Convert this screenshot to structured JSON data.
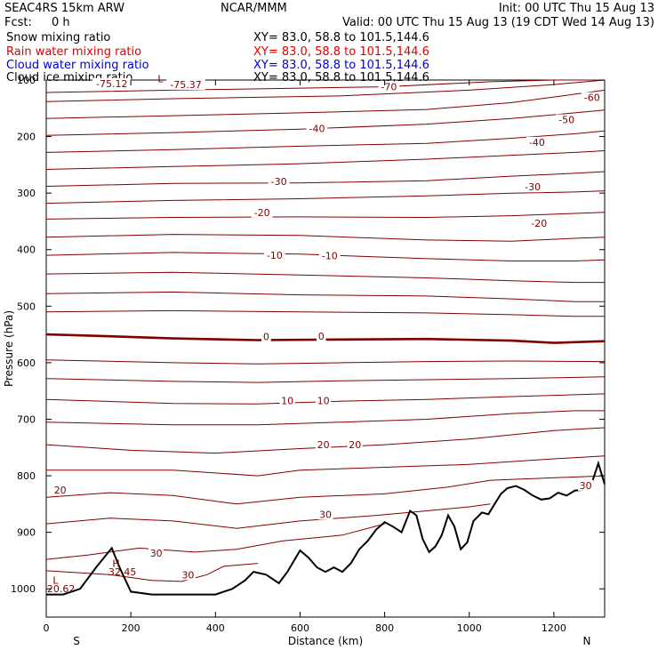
{
  "header": {
    "model": "SEAC4RS 15km ARW",
    "center": "NCAR/MMM",
    "init": "Init: 00 UTC Thu 15 Aug 13",
    "fcst_label": "Fcst:",
    "fcst_value": "0 h",
    "valid": "Valid: 00 UTC Thu 15 Aug 13 (19 CDT Wed 14 Aug 13)"
  },
  "fields": [
    {
      "name": "Snow mixing ratio",
      "xy": "XY=  83.0, 58.8 to 101.5,144.6",
      "color": "#000000"
    },
    {
      "name": "Rain water mixing ratio",
      "xy": "XY=  83.0, 58.8 to 101.5,144.6",
      "color": "#e00000"
    },
    {
      "name": "Cloud water mixing ratio",
      "xy": "XY=  83.0, 58.8 to 101.5,144.6",
      "color": "#0000cc"
    },
    {
      "name": "Cloud ice mixing ratio",
      "xy": "XY=  83.0, 58.8 to 101.5,144.6",
      "color": "#000000"
    }
  ],
  "chart_data": {
    "type": "line",
    "xlabel": "Distance (km)",
    "ylabel": "Pressure (hPa)",
    "xlim": [
      0,
      1320
    ],
    "ylim": [
      1050,
      100
    ],
    "x_ticks": [
      0,
      200,
      400,
      600,
      800,
      1000,
      1200
    ],
    "y_ticks": [
      100,
      200,
      300,
      400,
      500,
      600,
      700,
      800,
      900,
      1000
    ],
    "x_end_labels": {
      "left": "S",
      "right": "N"
    },
    "contour_color": "#800000",
    "terrain_color": "#000000",
    "contour_lines": [
      {
        "pts": [
          [
            0,
            122
          ],
          [
            300,
            118
          ],
          [
            800,
            112
          ],
          [
            1050,
            103
          ],
          [
            1200,
            98
          ],
          [
            1320,
            95
          ]
        ]
      },
      {
        "pts": [
          [
            0,
            138
          ],
          [
            300,
            133
          ],
          [
            700,
            128
          ],
          [
            1000,
            118
          ],
          [
            1200,
            108
          ],
          [
            1320,
            100
          ]
        ]
      },
      {
        "pts": [
          [
            0,
            168
          ],
          [
            300,
            163
          ],
          [
            600,
            158
          ],
          [
            900,
            152
          ],
          [
            1100,
            140
          ],
          [
            1250,
            125
          ],
          [
            1320,
            118
          ]
        ]
      },
      {
        "pts": [
          [
            0,
            198
          ],
          [
            300,
            193
          ],
          [
            600,
            187
          ],
          [
            900,
            178
          ],
          [
            1100,
            168
          ],
          [
            1250,
            158
          ],
          [
            1320,
            153
          ]
        ]
      },
      {
        "pts": [
          [
            0,
            228
          ],
          [
            300,
            223
          ],
          [
            600,
            217
          ],
          [
            900,
            212
          ],
          [
            1100,
            203
          ],
          [
            1250,
            195
          ],
          [
            1320,
            190
          ]
        ]
      },
      {
        "pts": [
          [
            0,
            258
          ],
          [
            300,
            253
          ],
          [
            600,
            248
          ],
          [
            900,
            240
          ],
          [
            1100,
            233
          ],
          [
            1250,
            228
          ],
          [
            1320,
            225
          ]
        ]
      },
      {
        "pts": [
          [
            0,
            288
          ],
          [
            300,
            283
          ],
          [
            600,
            282
          ],
          [
            900,
            278
          ],
          [
            1100,
            270
          ],
          [
            1250,
            265
          ],
          [
            1320,
            262
          ]
        ]
      },
      {
        "pts": [
          [
            0,
            318
          ],
          [
            300,
            313
          ],
          [
            600,
            310
          ],
          [
            900,
            305
          ],
          [
            1100,
            300
          ],
          [
            1250,
            298
          ],
          [
            1320,
            296
          ]
        ]
      },
      {
        "pts": [
          [
            0,
            346
          ],
          [
            300,
            343
          ],
          [
            600,
            342
          ],
          [
            900,
            343
          ],
          [
            1100,
            340
          ],
          [
            1250,
            336
          ],
          [
            1320,
            334
          ]
        ]
      },
      {
        "pts": [
          [
            0,
            378
          ],
          [
            300,
            373
          ],
          [
            600,
            375
          ],
          [
            900,
            383
          ],
          [
            1100,
            385
          ],
          [
            1250,
            380
          ],
          [
            1320,
            378
          ]
        ]
      },
      {
        "pts": [
          [
            0,
            410
          ],
          [
            300,
            405
          ],
          [
            600,
            408
          ],
          [
            900,
            416
          ],
          [
            1100,
            420
          ],
          [
            1250,
            420
          ],
          [
            1320,
            418
          ]
        ]
      },
      {
        "pts": [
          [
            0,
            443
          ],
          [
            300,
            440
          ],
          [
            600,
            445
          ],
          [
            900,
            450
          ],
          [
            1100,
            455
          ],
          [
            1250,
            458
          ],
          [
            1320,
            458
          ]
        ]
      },
      {
        "pts": [
          [
            0,
            478
          ],
          [
            300,
            475
          ],
          [
            600,
            480
          ],
          [
            900,
            482
          ],
          [
            1100,
            487
          ],
          [
            1250,
            492
          ],
          [
            1320,
            492
          ]
        ]
      },
      {
        "pts": [
          [
            0,
            510
          ],
          [
            300,
            508
          ],
          [
            600,
            510
          ],
          [
            900,
            512
          ],
          [
            1100,
            515
          ],
          [
            1250,
            518
          ],
          [
            1320,
            518
          ]
        ]
      },
      {
        "pts": [
          [
            0,
            550
          ],
          [
            100,
            552
          ],
          [
            300,
            557
          ],
          [
            500,
            560
          ],
          [
            700,
            559
          ],
          [
            900,
            558
          ],
          [
            1100,
            561
          ],
          [
            1200,
            565
          ],
          [
            1320,
            562
          ]
        ],
        "bold": true
      },
      {
        "pts": [
          [
            0,
            595
          ],
          [
            300,
            600
          ],
          [
            500,
            602
          ],
          [
            700,
            600
          ],
          [
            900,
            598
          ],
          [
            1100,
            597
          ],
          [
            1320,
            598
          ]
        ]
      },
      {
        "pts": [
          [
            0,
            628
          ],
          [
            300,
            633
          ],
          [
            500,
            635
          ],
          [
            700,
            632
          ],
          [
            900,
            630
          ],
          [
            1100,
            628
          ],
          [
            1320,
            625
          ]
        ]
      },
      {
        "pts": [
          [
            0,
            665
          ],
          [
            300,
            672
          ],
          [
            500,
            673
          ],
          [
            700,
            668
          ],
          [
            900,
            665
          ],
          [
            1100,
            660
          ],
          [
            1320,
            655
          ]
        ]
      },
      {
        "pts": [
          [
            0,
            705
          ],
          [
            300,
            710
          ],
          [
            500,
            710
          ],
          [
            700,
            705
          ],
          [
            900,
            700
          ],
          [
            1100,
            690
          ],
          [
            1250,
            685
          ],
          [
            1320,
            685
          ]
        ]
      },
      {
        "pts": [
          [
            0,
            745
          ],
          [
            200,
            755
          ],
          [
            400,
            760
          ],
          [
            600,
            752
          ],
          [
            800,
            745
          ],
          [
            1000,
            735
          ],
          [
            1200,
            720
          ],
          [
            1320,
            715
          ]
        ]
      },
      {
        "pts": [
          [
            0,
            790
          ],
          [
            150,
            790
          ],
          [
            300,
            790
          ],
          [
            500,
            800
          ],
          [
            600,
            790
          ],
          [
            800,
            785
          ],
          [
            1000,
            780
          ],
          [
            1200,
            770
          ],
          [
            1320,
            765
          ]
        ]
      },
      {
        "pts": [
          [
            0,
            838
          ],
          [
            150,
            830
          ],
          [
            300,
            835
          ],
          [
            450,
            850
          ],
          [
            600,
            838
          ],
          [
            800,
            832
          ],
          [
            950,
            820
          ],
          [
            1050,
            808
          ],
          [
            1150,
            805
          ],
          [
            1320,
            800
          ]
        ]
      },
      {
        "pts": [
          [
            0,
            885
          ],
          [
            150,
            875
          ],
          [
            300,
            880
          ],
          [
            450,
            893
          ],
          [
            600,
            880
          ],
          [
            780,
            870
          ],
          [
            900,
            862
          ],
          [
            1000,
            855
          ],
          [
            1050,
            850
          ]
        ]
      },
      {
        "pts": [
          [
            0,
            948
          ],
          [
            100,
            940
          ],
          [
            220,
            928
          ],
          [
            350,
            935
          ],
          [
            450,
            930
          ],
          [
            560,
            915
          ],
          [
            700,
            905
          ],
          [
            800,
            885
          ]
        ]
      },
      {
        "pts": [
          [
            0,
            968
          ],
          [
            150,
            975
          ],
          [
            250,
            985
          ],
          [
            320,
            987
          ],
          [
            380,
            975
          ],
          [
            420,
            960
          ],
          [
            500,
            955
          ]
        ]
      }
    ],
    "contour_labels": [
      {
        "text": "-75.12",
        "x": 155,
        "p": 106
      },
      {
        "text": "-75.37",
        "x": 330,
        "p": 108
      },
      {
        "text": "-70",
        "x": 810,
        "p": 112
      },
      {
        "text": "-60",
        "x": 1290,
        "p": 131
      },
      {
        "text": "-50",
        "x": 1230,
        "p": 170
      },
      {
        "text": "-40",
        "x": 640,
        "p": 186
      },
      {
        "text": "-40",
        "x": 1160,
        "p": 210
      },
      {
        "text": "-30",
        "x": 550,
        "p": 279
      },
      {
        "text": "-30",
        "x": 1150,
        "p": 289
      },
      {
        "text": "-20",
        "x": 510,
        "p": 334
      },
      {
        "text": "-20",
        "x": 1165,
        "p": 353
      },
      {
        "text": "-10",
        "x": 540,
        "p": 410
      },
      {
        "text": "-10",
        "x": 670,
        "p": 411
      },
      {
        "text": "0",
        "x": 520,
        "p": 554
      },
      {
        "text": "0",
        "x": 650,
        "p": 553
      },
      {
        "text": "10",
        "x": 570,
        "p": 667
      },
      {
        "text": "10",
        "x": 655,
        "p": 667
      },
      {
        "text": "20",
        "x": 655,
        "p": 745
      },
      {
        "text": "20",
        "x": 730,
        "p": 745
      },
      {
        "text": "20",
        "x": 33,
        "p": 825
      },
      {
        "text": "30",
        "x": 660,
        "p": 868
      },
      {
        "text": "30",
        "x": 260,
        "p": 937
      },
      {
        "text": "30",
        "x": 335,
        "p": 975
      },
      {
        "text": "30",
        "x": 1275,
        "p": 817
      }
    ],
    "extrema_labels": [
      {
        "text": "L",
        "x": 22,
        "p": 985
      },
      {
        "text": "20.62",
        "x": 35,
        "p": 1000
      },
      {
        "text": "H",
        "x": 165,
        "p": 955
      },
      {
        "text": "32.45",
        "x": 180,
        "p": 970
      },
      {
        "text": "L",
        "x": 270,
        "p": 98
      }
    ],
    "terrain": [
      [
        0,
        1010
      ],
      [
        40,
        1010
      ],
      [
        80,
        1000
      ],
      [
        120,
        960
      ],
      [
        155,
        928
      ],
      [
        175,
        965
      ],
      [
        200,
        1005
      ],
      [
        250,
        1010
      ],
      [
        400,
        1010
      ],
      [
        440,
        1000
      ],
      [
        470,
        985
      ],
      [
        490,
        970
      ],
      [
        520,
        975
      ],
      [
        550,
        990
      ],
      [
        570,
        970
      ],
      [
        600,
        932
      ],
      [
        620,
        945
      ],
      [
        640,
        962
      ],
      [
        660,
        970
      ],
      [
        680,
        962
      ],
      [
        700,
        970
      ],
      [
        720,
        955
      ],
      [
        740,
        930
      ],
      [
        760,
        915
      ],
      [
        780,
        895
      ],
      [
        800,
        882
      ],
      [
        820,
        890
      ],
      [
        840,
        900
      ],
      [
        860,
        862
      ],
      [
        875,
        870
      ],
      [
        890,
        912
      ],
      [
        905,
        935
      ],
      [
        920,
        925
      ],
      [
        935,
        905
      ],
      [
        950,
        870
      ],
      [
        965,
        890
      ],
      [
        980,
        930
      ],
      [
        995,
        918
      ],
      [
        1010,
        880
      ],
      [
        1030,
        865
      ],
      [
        1045,
        868
      ],
      [
        1060,
        850
      ],
      [
        1075,
        832
      ],
      [
        1090,
        822
      ],
      [
        1110,
        818
      ],
      [
        1130,
        825
      ],
      [
        1150,
        835
      ],
      [
        1170,
        842
      ],
      [
        1190,
        840
      ],
      [
        1210,
        830
      ],
      [
        1230,
        835
      ],
      [
        1250,
        826
      ],
      [
        1270,
        825
      ],
      [
        1290,
        812
      ],
      [
        1305,
        778
      ],
      [
        1320,
        815
      ]
    ]
  }
}
